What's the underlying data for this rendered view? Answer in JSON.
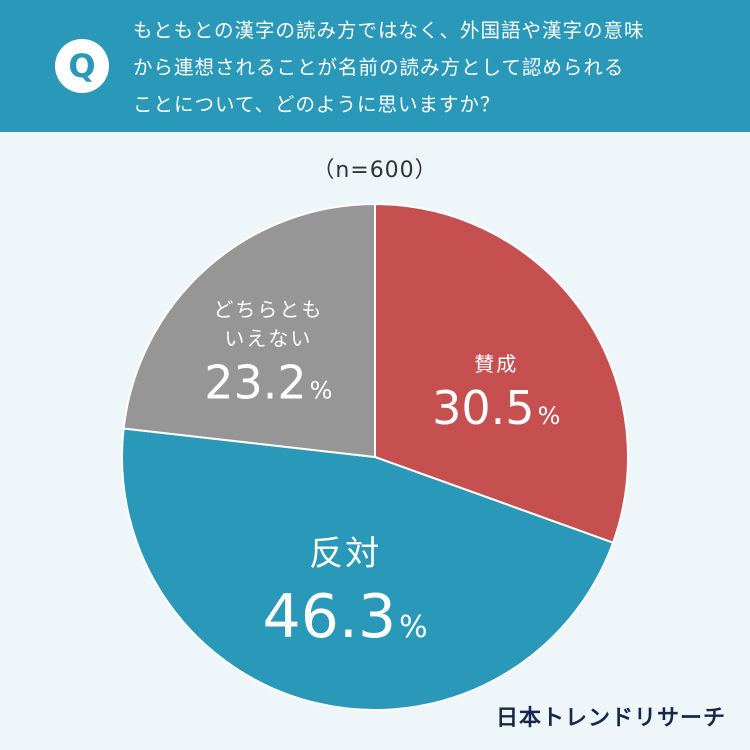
{
  "header": {
    "badge": "Q",
    "question_lines": [
      "もともとの漢字の読み方ではなく、外国語や漢字の意味",
      "から連想されることが名前の読み方として認められる",
      "ことについて、どのように思いますか？"
    ]
  },
  "sample_label": "（n=600）",
  "brand": "日本トレンドリサーチ",
  "colors": {
    "header_bg": "#2a98b8",
    "background": "#eef6fa",
    "approve": "#c65050",
    "oppose": "#2a98b8",
    "neutral": "#969696"
  },
  "chart_data": {
    "type": "pie",
    "start": "12 o'clock",
    "direction": "clockwise",
    "slices": [
      {
        "label": "賛成",
        "label_lines": [
          "賛成"
        ],
        "value": 30.5,
        "display": "30.5",
        "unit": "%",
        "color": "#c65050"
      },
      {
        "label": "反対",
        "label_lines": [
          "反対"
        ],
        "value": 46.3,
        "display": "46.3",
        "unit": "%",
        "color": "#2a98b8"
      },
      {
        "label": "どちらともいえない",
        "label_lines": [
          "どちらとも",
          "いえない"
        ],
        "value": 23.2,
        "display": "23.2",
        "unit": "%",
        "color": "#969696"
      }
    ]
  }
}
